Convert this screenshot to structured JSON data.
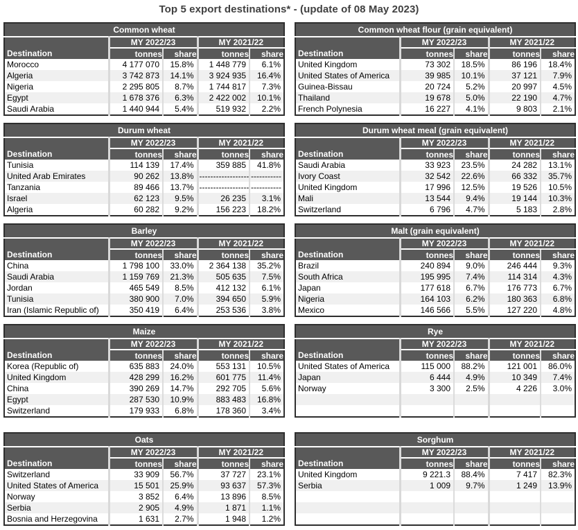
{
  "page": {
    "title": "Top 5 export destinations* - (update of 08 May 2023)"
  },
  "columns": {
    "destination": "Destination",
    "group1": "MY 2022/23",
    "group2": "MY 2021/22",
    "tonnes": "tonnes",
    "share": "share"
  },
  "colors": {
    "header_bg": "#595959",
    "header_text": "#ffffff",
    "row_stripe": "#f0f0f0",
    "page_title_text": "#404040"
  },
  "tables": [
    {
      "title": "Common wheat",
      "rows": [
        [
          "Morocco",
          "4 177 070",
          "15.8%",
          "1 448 779",
          "6.1%"
        ],
        [
          "Algeria",
          "3 742 873",
          "14.1%",
          "3 924 935",
          "16.4%"
        ],
        [
          "Nigeria",
          "2 295 805",
          "8.7%",
          "1 744 817",
          "7.3%"
        ],
        [
          "Egypt",
          "1 678 376",
          "6.3%",
          "2 422 002",
          "10.1%"
        ],
        [
          "Saudi Arabia",
          "1 440 944",
          "5.4%",
          "519 932",
          "2.2%"
        ]
      ]
    },
    {
      "title": "Common wheat flour (grain equivalent)",
      "rows": [
        [
          "United Kingdom",
          "73 302",
          "18.5%",
          "86 196",
          "18.4%"
        ],
        [
          "United States of America",
          "39 985",
          "10.1%",
          "37 121",
          "7.9%"
        ],
        [
          "Guinea-Bissau",
          "20 724",
          "5.2%",
          "20 997",
          "4.5%"
        ],
        [
          "Thailand",
          "19 678",
          "5.0%",
          "22 190",
          "4.7%"
        ],
        [
          "French Polynesia",
          "16 227",
          "4.1%",
          "9 803",
          "2.1%"
        ]
      ]
    },
    {
      "title": "Durum wheat",
      "rows": [
        [
          "Tunisia",
          "114 139",
          "17.4%",
          "359 885",
          "41.8%"
        ],
        [
          "United Arab Emirates",
          "90 262",
          "13.8%",
          "------------------",
          "-----------"
        ],
        [
          "Tanzania",
          "89 466",
          "13.7%",
          "------------------",
          "-----------"
        ],
        [
          "Israel",
          "62 123",
          "9.5%",
          "26 235",
          "3.1%"
        ],
        [
          "Algeria",
          "60 282",
          "9.2%",
          "156 223",
          "18.2%"
        ]
      ]
    },
    {
      "title": "Durum wheat meal (grain equivalent)",
      "rows": [
        [
          "Saudi Arabia",
          "33 923",
          "23.5%",
          "24 282",
          "13.1%"
        ],
        [
          "Ivory Coast",
          "32 542",
          "22.6%",
          "66 332",
          "35.7%"
        ],
        [
          "United Kingdom",
          "17 996",
          "12.5%",
          "19 526",
          "10.5%"
        ],
        [
          "Mali",
          "13 544",
          "9.4%",
          "19 144",
          "10.3%"
        ],
        [
          "Switzerland",
          "6 796",
          "4.7%",
          "5 183",
          "2.8%"
        ]
      ]
    },
    {
      "title": "Barley",
      "rows": [
        [
          "China",
          "1 798 100",
          "33.0%",
          "2 364 138",
          "35.2%"
        ],
        [
          "Saudi Arabia",
          "1 159 769",
          "21.3%",
          "505 635",
          "7.5%"
        ],
        [
          "Jordan",
          "465 549",
          "8.5%",
          "412 132",
          "6.1%"
        ],
        [
          "Tunisia",
          "380 900",
          "7.0%",
          "394 650",
          "5.9%"
        ],
        [
          "Iran (Islamic Republic of)",
          "350 419",
          "6.4%",
          "253 536",
          "3.8%"
        ]
      ]
    },
    {
      "title": "Malt (grain equivalent)",
      "rows": [
        [
          "Brazil",
          "240 894",
          "9.0%",
          "246 444",
          "9.3%"
        ],
        [
          "South Africa",
          "195 995",
          "7.4%",
          "114 314",
          "4.3%"
        ],
        [
          "Japan",
          "177 618",
          "6.7%",
          "176 773",
          "6.7%"
        ],
        [
          "Nigeria",
          "164 103",
          "6.2%",
          "180 363",
          "6.8%"
        ],
        [
          "Mexico",
          "146 566",
          "5.5%",
          "127 220",
          "4.8%"
        ]
      ]
    },
    {
      "title": "Maize",
      "rows": [
        [
          "Korea (Republic of)",
          "635 883",
          "24.0%",
          "553 131",
          "10.5%"
        ],
        [
          "United Kingdom",
          "428 299",
          "16.2%",
          "601 775",
          "11.4%"
        ],
        [
          "China",
          "390 269",
          "14.7%",
          "292 705",
          "5.6%"
        ],
        [
          "Egypt",
          "287 530",
          "10.9%",
          "883 483",
          "16.8%"
        ],
        [
          "Switzerland",
          "179 933",
          "6.8%",
          "178 360",
          "3.4%"
        ]
      ]
    },
    {
      "title": "Rye",
      "rows": [
        [
          "United States of America",
          "115 000",
          "88.2%",
          "121 001",
          "86.0%"
        ],
        [
          "Japan",
          "6 444",
          "4.9%",
          "10 349",
          "7.4%"
        ],
        [
          "Norway",
          "3 300",
          "2.5%",
          "4 226",
          "3.0%"
        ],
        [
          "",
          "",
          "",
          "",
          ""
        ],
        [
          "",
          "",
          "",
          "",
          ""
        ]
      ]
    },
    {
      "title": "Oats",
      "rows": [
        [
          "Switzerland",
          "33 909",
          "56.7%",
          "37 727",
          "23.1%"
        ],
        [
          "United States of America",
          "15 501",
          "25.9%",
          "93 637",
          "57.3%"
        ],
        [
          "Norway",
          "3 852",
          "6.4%",
          "13 896",
          "8.5%"
        ],
        [
          "Serbia",
          "2 905",
          "4.9%",
          "1 871",
          "1.1%"
        ],
        [
          "Bosnia and Herzegovina",
          "1 631",
          "2.7%",
          "1 948",
          "1.2%"
        ]
      ]
    },
    {
      "title": "Sorghum",
      "rows": [
        [
          "United Kingdom",
          "9 221.3",
          "88.4%",
          "7 417",
          "82.3%"
        ],
        [
          "Serbia",
          "1 009",
          "9.7%",
          "1 249",
          "13.9%"
        ],
        [
          "",
          "",
          "",
          "",
          ""
        ],
        [
          "",
          "",
          "",
          "",
          ""
        ],
        [
          "",
          "",
          "",
          "",
          ""
        ]
      ]
    }
  ]
}
